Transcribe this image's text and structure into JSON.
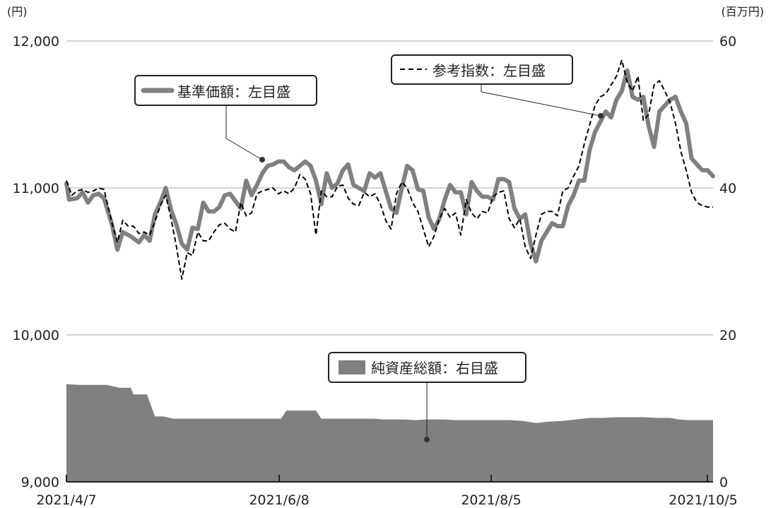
{
  "chart_data": {
    "type": "line",
    "y_left": {
      "unit": "(円)",
      "ticks": [
        "12,000",
        "11,000",
        "10,000",
        "9,000"
      ],
      "tick_values": [
        12000,
        11000,
        10000,
        9000
      ],
      "range": [
        9000,
        12000
      ]
    },
    "y_right": {
      "unit": "(百万円)",
      "ticks": [
        "60",
        "40",
        "20",
        "0"
      ],
      "tick_values": [
        60,
        40,
        20,
        0
      ],
      "range": [
        0,
        60
      ]
    },
    "x_ticks": [
      "2021/4/7",
      "2021/6/8",
      "2021/8/5",
      "2021/10/5"
    ],
    "x_tick_index": [
      0,
      60,
      120,
      181
    ],
    "grid": true,
    "legend_nav": "基準価額：左目盛",
    "legend_index": "参考指数：左目盛",
    "legend_assets": "純資産総額：右目盛",
    "series": [
      {
        "name": "基準価額：左目盛",
        "axis": "left",
        "color": "#808080",
        "points": [
          [
            0,
            11030
          ],
          [
            1,
            10920
          ],
          [
            4,
            10930
          ],
          [
            6,
            10970
          ],
          [
            8,
            10900
          ],
          [
            10,
            10950
          ],
          [
            12,
            10960
          ],
          [
            14,
            10930
          ],
          [
            17,
            10750
          ],
          [
            19,
            10580
          ],
          [
            21,
            10700
          ],
          [
            24,
            10670
          ],
          [
            27,
            10630
          ],
          [
            29,
            10680
          ],
          [
            31,
            10640
          ],
          [
            33,
            10820
          ],
          [
            35,
            10900
          ],
          [
            37,
            11000
          ],
          [
            39,
            10850
          ],
          [
            41,
            10750
          ],
          [
            43,
            10620
          ],
          [
            45,
            10580
          ],
          [
            47,
            10730
          ],
          [
            49,
            10720
          ],
          [
            51,
            10900
          ],
          [
            53,
            10840
          ],
          [
            55,
            10840
          ],
          [
            57,
            10870
          ],
          [
            59,
            10950
          ],
          [
            61,
            10960
          ],
          [
            63,
            10910
          ],
          [
            65,
            10860
          ],
          [
            67,
            11050
          ],
          [
            69,
            10950
          ],
          [
            71,
            11020
          ],
          [
            73,
            11100
          ],
          [
            75,
            11150
          ],
          [
            77,
            11160
          ],
          [
            79,
            11180
          ],
          [
            81,
            11180
          ],
          [
            83,
            11140
          ],
          [
            85,
            11120
          ],
          [
            87,
            11150
          ],
          [
            89,
            11180
          ],
          [
            91,
            11150
          ],
          [
            93,
            11050
          ],
          [
            95,
            10890
          ],
          [
            97,
            11100
          ],
          [
            99,
            11000
          ],
          [
            101,
            11030
          ],
          [
            103,
            11120
          ],
          [
            105,
            11160
          ],
          [
            107,
            11020
          ],
          [
            109,
            11000
          ],
          [
            111,
            10980
          ],
          [
            113,
            11100
          ],
          [
            115,
            11070
          ],
          [
            117,
            11100
          ],
          [
            119,
            10980
          ],
          [
            121,
            10860
          ],
          [
            123,
            10830
          ],
          [
            125,
            11000
          ],
          [
            127,
            11150
          ],
          [
            129,
            11120
          ],
          [
            131,
            10990
          ],
          [
            133,
            10980
          ],
          [
            135,
            10800
          ],
          [
            137,
            10720
          ],
          [
            139,
            10790
          ],
          [
            141,
            10920
          ],
          [
            143,
            11020
          ],
          [
            145,
            10970
          ],
          [
            147,
            10970
          ],
          [
            149,
            10820
          ],
          [
            151,
            11040
          ],
          [
            153,
            10980
          ],
          [
            155,
            10940
          ],
          [
            157,
            10940
          ],
          [
            159,
            10920
          ],
          [
            161,
            11060
          ],
          [
            163,
            11060
          ],
          [
            165,
            11040
          ],
          [
            167,
            10860
          ],
          [
            169,
            10790
          ],
          [
            171,
            10820
          ],
          [
            173,
            10620
          ],
          [
            175,
            10500
          ],
          [
            177,
            10640
          ],
          [
            179,
            10700
          ],
          [
            181,
            10760
          ],
          [
            183,
            10740
          ],
          [
            185,
            10740
          ],
          [
            187,
            10880
          ],
          [
            189,
            10950
          ],
          [
            191,
            11050
          ],
          [
            193,
            11050
          ],
          [
            195,
            11260
          ],
          [
            197,
            11380
          ],
          [
            199,
            11450
          ],
          [
            201,
            11520
          ],
          [
            203,
            11480
          ],
          [
            205,
            11600
          ],
          [
            207,
            11660
          ],
          [
            209,
            11800
          ],
          [
            211,
            11620
          ],
          [
            213,
            11600
          ],
          [
            215,
            11620
          ],
          [
            217,
            11420
          ],
          [
            219,
            11280
          ],
          [
            221,
            11520
          ],
          [
            223,
            11560
          ],
          [
            225,
            11600
          ],
          [
            227,
            11620
          ],
          [
            229,
            11520
          ],
          [
            231,
            11440
          ],
          [
            233,
            11200
          ],
          [
            235,
            11160
          ],
          [
            237,
            11120
          ],
          [
            239,
            11120
          ],
          [
            241,
            11080
          ]
        ]
      },
      {
        "name": "参考指数：左目盛",
        "axis": "left",
        "color": "#000000",
        "points": [
          [
            0,
            11050
          ],
          [
            2,
            10950
          ],
          [
            4,
            10980
          ],
          [
            6,
            10990
          ],
          [
            8,
            10970
          ],
          [
            10,
            10980
          ],
          [
            12,
            11000
          ],
          [
            14,
            10990
          ],
          [
            17,
            10760
          ],
          [
            19,
            10630
          ],
          [
            21,
            10780
          ],
          [
            23,
            10740
          ],
          [
            25,
            10740
          ],
          [
            27,
            10690
          ],
          [
            29,
            10700
          ],
          [
            31,
            10680
          ],
          [
            33,
            10770
          ],
          [
            35,
            10880
          ],
          [
            37,
            10950
          ],
          [
            39,
            10790
          ],
          [
            41,
            10600
          ],
          [
            43,
            10380
          ],
          [
            45,
            10560
          ],
          [
            47,
            10540
          ],
          [
            49,
            10700
          ],
          [
            51,
            10640
          ],
          [
            53,
            10640
          ],
          [
            55,
            10700
          ],
          [
            57,
            10750
          ],
          [
            59,
            10760
          ],
          [
            61,
            10720
          ],
          [
            63,
            10700
          ],
          [
            65,
            10900
          ],
          [
            67,
            10810
          ],
          [
            69,
            10830
          ],
          [
            71,
            10960
          ],
          [
            73,
            10980
          ],
          [
            75,
            10990
          ],
          [
            77,
            11000
          ],
          [
            79,
            10960
          ],
          [
            81,
            10980
          ],
          [
            83,
            10960
          ],
          [
            85,
            11000
          ],
          [
            87,
            11090
          ],
          [
            89,
            11060
          ],
          [
            91,
            10960
          ],
          [
            93,
            10680
          ],
          [
            95,
            10980
          ],
          [
            97,
            10940
          ],
          [
            99,
            10940
          ],
          [
            101,
            11010
          ],
          [
            103,
            11020
          ],
          [
            105,
            10930
          ],
          [
            107,
            10890
          ],
          [
            109,
            10880
          ],
          [
            111,
            10970
          ],
          [
            113,
            10940
          ],
          [
            115,
            10960
          ],
          [
            117,
            10890
          ],
          [
            119,
            10780
          ],
          [
            121,
            10720
          ],
          [
            123,
            10960
          ],
          [
            125,
            11040
          ],
          [
            127,
            11000
          ],
          [
            129,
            10900
          ],
          [
            131,
            10840
          ],
          [
            133,
            10720
          ],
          [
            135,
            10600
          ],
          [
            137,
            10670
          ],
          [
            139,
            10790
          ],
          [
            141,
            10860
          ],
          [
            143,
            10800
          ],
          [
            145,
            10830
          ],
          [
            147,
            10680
          ],
          [
            149,
            10920
          ],
          [
            151,
            10830
          ],
          [
            153,
            10790
          ],
          [
            155,
            10840
          ],
          [
            157,
            10830
          ],
          [
            159,
            10940
          ],
          [
            161,
            10970
          ],
          [
            163,
            10980
          ],
          [
            165,
            10790
          ],
          [
            167,
            10730
          ],
          [
            169,
            10790
          ],
          [
            171,
            10600
          ],
          [
            173,
            10520
          ],
          [
            175,
            10680
          ],
          [
            177,
            10820
          ],
          [
            179,
            10840
          ],
          [
            181,
            10840
          ],
          [
            183,
            10810
          ],
          [
            185,
            10980
          ],
          [
            187,
            11000
          ],
          [
            189,
            11080
          ],
          [
            191,
            11150
          ],
          [
            193,
            11300
          ],
          [
            195,
            11430
          ],
          [
            197,
            11560
          ],
          [
            199,
            11620
          ],
          [
            201,
            11640
          ],
          [
            203,
            11700
          ],
          [
            205,
            11760
          ],
          [
            207,
            11870
          ],
          [
            209,
            11720
          ],
          [
            211,
            11660
          ],
          [
            213,
            11760
          ],
          [
            215,
            11460
          ],
          [
            217,
            11500
          ],
          [
            219,
            11700
          ],
          [
            221,
            11730
          ],
          [
            223,
            11660
          ],
          [
            225,
            11580
          ],
          [
            227,
            11440
          ],
          [
            229,
            11250
          ],
          [
            231,
            11120
          ],
          [
            233,
            10970
          ],
          [
            235,
            10900
          ],
          [
            237,
            10880
          ],
          [
            239,
            10870
          ],
          [
            241,
            10870
          ]
        ]
      },
      {
        "name": "純資産総額：右目盛",
        "axis": "right",
        "type": "area",
        "color": "#808080",
        "points": [
          [
            0,
            13.3
          ],
          [
            5,
            13.2
          ],
          [
            10,
            13.2
          ],
          [
            15,
            13.2
          ],
          [
            20,
            12.8
          ],
          [
            22,
            12.8
          ],
          [
            24,
            12.8
          ],
          [
            25,
            11.9
          ],
          [
            28,
            11.9
          ],
          [
            30,
            11.9
          ],
          [
            33,
            8.9
          ],
          [
            36,
            8.9
          ],
          [
            40,
            8.6
          ],
          [
            44,
            8.6
          ],
          [
            47,
            8.6
          ],
          [
            50,
            8.6
          ],
          [
            55,
            8.6
          ],
          [
            58,
            8.6
          ],
          [
            60,
            8.6
          ],
          [
            62,
            8.6
          ],
          [
            65,
            8.6
          ],
          [
            70,
            8.6
          ],
          [
            72,
            8.6
          ],
          [
            78,
            8.6
          ],
          [
            80,
            8.6
          ],
          [
            82,
            9.7
          ],
          [
            86,
            9.7
          ],
          [
            88,
            9.7
          ],
          [
            90,
            9.7
          ],
          [
            93,
            9.7
          ],
          [
            95,
            8.6
          ],
          [
            97,
            8.6
          ],
          [
            100,
            8.6
          ],
          [
            105,
            8.6
          ],
          [
            110,
            8.6
          ],
          [
            115,
            8.6
          ],
          [
            118,
            8.5
          ],
          [
            122,
            8.5
          ],
          [
            125,
            8.5
          ],
          [
            130,
            8.4
          ],
          [
            135,
            8.5
          ],
          [
            140,
            8.5
          ],
          [
            145,
            8.4
          ],
          [
            150,
            8.4
          ],
          [
            155,
            8.4
          ],
          [
            160,
            8.4
          ],
          [
            165,
            8.4
          ],
          [
            170,
            8.3
          ],
          [
            175,
            8.0
          ],
          [
            180,
            8.2
          ],
          [
            185,
            8.3
          ],
          [
            190,
            8.5
          ],
          [
            195,
            8.7
          ],
          [
            200,
            8.7
          ],
          [
            205,
            8.8
          ],
          [
            210,
            8.8
          ],
          [
            215,
            8.8
          ],
          [
            220,
            8.7
          ],
          [
            225,
            8.7
          ],
          [
            228,
            8.5
          ],
          [
            232,
            8.4
          ],
          [
            236,
            8.4
          ],
          [
            241,
            8.4
          ]
        ]
      }
    ]
  }
}
